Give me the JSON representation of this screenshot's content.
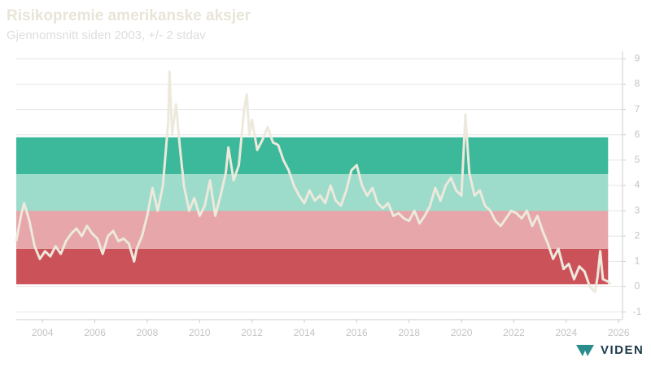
{
  "chart_data": {
    "type": "line",
    "title": "Risikopremie amerikanske aksjer",
    "subtitle": "Gjennomsnitt siden 2003, +/- 2 stdav",
    "logo": "VIDEN",
    "xlim": [
      2003,
      2026.15
    ],
    "xticks": [
      2004,
      2006,
      2008,
      2010,
      2012,
      2014,
      2016,
      2018,
      2020,
      2022,
      2024,
      2026
    ],
    "ylim": [
      -1.3,
      9.3
    ],
    "yticks": [
      -1,
      0,
      1,
      2,
      3,
      4,
      5,
      6,
      7,
      8,
      9
    ],
    "grid": true,
    "band_x": [
      2003,
      2025.6
    ],
    "bands": [
      {
        "from": 0.1,
        "to": 1.5,
        "color": "#cc525a"
      },
      {
        "from": 1.5,
        "to": 3.0,
        "color": "#e6a6aa"
      },
      {
        "from": 3.0,
        "to": 4.45,
        "color": "#9ddccb"
      },
      {
        "from": 4.45,
        "to": 5.9,
        "color": "#3bb99a"
      }
    ],
    "series": [
      {
        "color": "#ede9dc",
        "x": [
          2003.0,
          2003.2,
          2003.3,
          2003.5,
          2003.7,
          2003.9,
          2004.1,
          2004.3,
          2004.5,
          2004.7,
          2004.9,
          2005.1,
          2005.3,
          2005.5,
          2005.7,
          2005.9,
          2006.1,
          2006.3,
          2006.5,
          2006.7,
          2006.9,
          2007.1,
          2007.3,
          2007.5,
          2007.6,
          2007.8,
          2008.0,
          2008.2,
          2008.4,
          2008.6,
          2008.8,
          2008.85,
          2008.95,
          2009.1,
          2009.25,
          2009.4,
          2009.6,
          2009.8,
          2010.0,
          2010.2,
          2010.4,
          2010.6,
          2010.8,
          2011.0,
          2011.1,
          2011.3,
          2011.5,
          2011.7,
          2011.8,
          2011.9,
          2012.0,
          2012.2,
          2012.4,
          2012.6,
          2012.8,
          2013.0,
          2013.2,
          2013.4,
          2013.6,
          2013.8,
          2014.0,
          2014.2,
          2014.4,
          2014.6,
          2014.8,
          2015.0,
          2015.2,
          2015.4,
          2015.6,
          2015.8,
          2016.0,
          2016.2,
          2016.4,
          2016.6,
          2016.8,
          2017.0,
          2017.2,
          2017.4,
          2017.6,
          2017.8,
          2018.0,
          2018.2,
          2018.4,
          2018.6,
          2018.8,
          2019.0,
          2019.2,
          2019.4,
          2019.6,
          2019.8,
          2020.0,
          2020.15,
          2020.3,
          2020.5,
          2020.7,
          2020.9,
          2021.1,
          2021.3,
          2021.5,
          2021.7,
          2021.9,
          2022.1,
          2022.3,
          2022.5,
          2022.7,
          2022.9,
          2023.1,
          2023.3,
          2023.5,
          2023.7,
          2023.9,
          2024.1,
          2024.3,
          2024.5,
          2024.7,
          2024.9,
          2025.1,
          2025.2,
          2025.3,
          2025.4,
          2025.6,
          2025.7
        ],
        "values": [
          1.8,
          2.9,
          3.3,
          2.6,
          1.6,
          1.1,
          1.4,
          1.2,
          1.6,
          1.3,
          1.8,
          2.1,
          2.3,
          2.0,
          2.4,
          2.1,
          1.9,
          1.3,
          2.0,
          2.2,
          1.8,
          1.9,
          1.7,
          1.0,
          1.5,
          2.0,
          2.8,
          3.9,
          3.0,
          4.0,
          6.5,
          8.5,
          6.0,
          7.2,
          5.5,
          4.0,
          3.0,
          3.5,
          2.8,
          3.2,
          4.2,
          2.8,
          3.6,
          4.5,
          5.5,
          4.2,
          4.8,
          7.0,
          7.6,
          6.0,
          6.6,
          5.4,
          5.8,
          6.3,
          5.7,
          5.6,
          5.0,
          4.6,
          4.0,
          3.6,
          3.3,
          3.8,
          3.4,
          3.6,
          3.3,
          4.0,
          3.4,
          3.2,
          3.8,
          4.6,
          4.8,
          4.0,
          3.6,
          3.9,
          3.3,
          3.1,
          3.3,
          2.8,
          2.9,
          2.7,
          2.6,
          3.0,
          2.5,
          2.8,
          3.2,
          3.9,
          3.4,
          4.0,
          4.3,
          3.8,
          3.6,
          6.8,
          4.5,
          3.6,
          3.8,
          3.2,
          3.0,
          2.6,
          2.4,
          2.7,
          3.0,
          2.9,
          2.7,
          3.0,
          2.4,
          2.8,
          2.2,
          1.7,
          1.1,
          1.5,
          0.7,
          0.9,
          0.3,
          0.8,
          0.6,
          0.0,
          -0.2,
          0.4,
          1.4,
          0.3,
          0.2,
          0.1
        ]
      }
    ]
  }
}
